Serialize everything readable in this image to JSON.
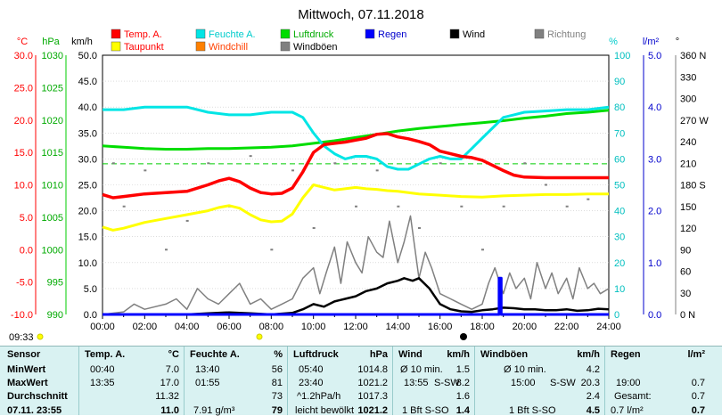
{
  "title": "Mittwoch, 07.11.2018",
  "legend": [
    {
      "label": "Temp. A.",
      "color": "#ff0000"
    },
    {
      "label": "Feuchte A.",
      "color": "#00e5e5"
    },
    {
      "label": "Luftdruck",
      "color": "#00dd00"
    },
    {
      "label": "Regen",
      "color": "#0000ff"
    },
    {
      "label": "Wind",
      "color": "#000000"
    },
    {
      "label": "Richtung",
      "color": "#808080"
    },
    {
      "label": "Taupunkt",
      "color": "#ffff00"
    },
    {
      "label": "Windchill",
      "color": "#ff8000"
    },
    {
      "label": "Windböen",
      "color": "#808080"
    }
  ],
  "axis_units": {
    "temp": "°C",
    "press": "hPa",
    "wind": "km/h",
    "hum": "%",
    "rain": "l/m²",
    "dir": "°"
  },
  "time_start": "09:33",
  "chart_data": {
    "type": "line",
    "x_unit": "hour",
    "x_ticks": [
      "00:00",
      "02:00",
      "04:00",
      "06:00",
      "08:00",
      "10:00",
      "12:00",
      "14:00",
      "16:00",
      "18:00",
      "20:00",
      "22:00",
      "24:00"
    ],
    "axes": {
      "temp": {
        "label": "°C",
        "min": -10,
        "max": 30,
        "ticks": [
          "30.0",
          "25.0",
          "20.0",
          "15.0",
          "10.0",
          "5.0",
          "0.0",
          "-5.0",
          "-10.0"
        ]
      },
      "press": {
        "label": "hPa",
        "min": 990,
        "max": 1030,
        "ticks": [
          "1030",
          "1025",
          "1020",
          "1015",
          "1010",
          "1005",
          "1000",
          "995",
          "990"
        ]
      },
      "wind": {
        "label": "km/h",
        "min": 0,
        "max": 50,
        "ticks": [
          "50.0",
          "45.0",
          "40.0",
          "35.0",
          "30.0",
          "25.0",
          "20.0",
          "15.0",
          "10.0",
          "5.0",
          "0.0"
        ]
      },
      "hum": {
        "label": "%",
        "min": 0,
        "max": 100,
        "ticks": [
          "100",
          "90",
          "80",
          "70",
          "60",
          "50",
          "40",
          "30",
          "20",
          "10",
          "0"
        ]
      },
      "rain": {
        "label": "l/m²",
        "min": 0,
        "max": 5,
        "ticks": [
          "5.0",
          "4.0",
          "3.0",
          "2.0",
          "1.0",
          "0.0"
        ]
      },
      "dir": {
        "label": "°",
        "min": 0,
        "max": 360,
        "ticks": [
          "360 N",
          "330",
          "300",
          "270 W",
          "240",
          "210",
          "180 S",
          "150",
          "120",
          "90",
          "60",
          "30",
          "0 N"
        ]
      }
    },
    "series": [
      {
        "name": "Temp. A.",
        "axis": "temp",
        "color": "#ff0000",
        "x": [
          0,
          0.5,
          1,
          2,
          3,
          4,
          5,
          5.5,
          6,
          6.5,
          7,
          7.5,
          8,
          8.5,
          9,
          9.5,
          10,
          10.5,
          11,
          11.5,
          12,
          12.5,
          13,
          13.5,
          14,
          14.5,
          15,
          15.5,
          16,
          16.5,
          17,
          17.5,
          18,
          18.5,
          19,
          19.5,
          20,
          21,
          22,
          23,
          24
        ],
        "y": [
          8.5,
          8,
          8.2,
          8.6,
          8.8,
          9,
          10,
          10.6,
          11,
          10.5,
          9.5,
          8.8,
          8.6,
          8.7,
          9.5,
          12,
          15,
          16.2,
          16.4,
          16.6,
          16.9,
          17.2,
          17.8,
          17.9,
          17.4,
          17.1,
          16.7,
          16.2,
          15.2,
          14.8,
          14.4,
          14.2,
          13.8,
          13,
          12.2,
          11.5,
          11.2,
          11.1,
          11.1,
          11.1,
          11.1
        ]
      },
      {
        "name": "Taupunkt",
        "axis": "temp",
        "color": "#ffff00",
        "x": [
          0,
          0.5,
          1,
          2,
          3,
          4,
          5,
          5.5,
          6,
          6.5,
          7,
          7.5,
          8,
          8.5,
          9,
          9.5,
          10,
          10.5,
          11,
          11.5,
          12,
          12.5,
          13,
          13.5,
          14,
          14.5,
          15,
          16,
          17,
          18,
          19,
          20,
          21,
          22,
          23,
          24
        ],
        "y": [
          3.5,
          3,
          3.3,
          4.2,
          4.8,
          5.4,
          6,
          6.5,
          6.8,
          6.4,
          5.4,
          4.6,
          4.3,
          4.4,
          5.5,
          8,
          10,
          9.6,
          9.2,
          9.4,
          9.6,
          9.4,
          9.3,
          9.1,
          9,
          8.8,
          8.6,
          8.4,
          8.2,
          8.1,
          8.3,
          8.4,
          8.5,
          8.5,
          8.6,
          8.6
        ]
      },
      {
        "name": "Feuchte A.",
        "axis": "hum",
        "color": "#00e5e5",
        "x": [
          0,
          1,
          2,
          3,
          4,
          5,
          6,
          7,
          8,
          9,
          9.5,
          10,
          10.5,
          11,
          11.5,
          12,
          12.5,
          13,
          13.5,
          14,
          14.5,
          15,
          15.5,
          16,
          16.5,
          17,
          17.5,
          18,
          18.5,
          19,
          19.5,
          20,
          21,
          22,
          23,
          24
        ],
        "y": [
          79,
          79,
          80,
          80,
          80,
          78,
          77,
          77,
          78,
          78,
          76,
          70,
          65,
          62,
          60,
          61,
          61,
          60,
          57,
          56,
          56,
          58,
          60,
          61,
          60,
          60,
          64,
          68,
          72,
          76,
          77,
          78,
          78.5,
          79,
          79,
          80
        ]
      },
      {
        "name": "Luftdruck",
        "axis": "press",
        "color": "#00dd00",
        "x": [
          0,
          1,
          2,
          3,
          4,
          5,
          6,
          7,
          8,
          9,
          10,
          11,
          12,
          13,
          14,
          15,
          16,
          17,
          18,
          19,
          20,
          21,
          22,
          23,
          24
        ],
        "y": [
          1016,
          1015.8,
          1015.6,
          1015.5,
          1015.5,
          1015.6,
          1015.6,
          1015.7,
          1015.8,
          1016,
          1016.4,
          1016.8,
          1017.3,
          1017.8,
          1018.3,
          1018.7,
          1019,
          1019.3,
          1019.6,
          1019.9,
          1020.3,
          1020.6,
          1021,
          1021.2,
          1021.5
        ]
      },
      {
        "name": "Wind",
        "axis": "wind",
        "color": "#000000",
        "x": [
          0,
          1,
          2,
          3,
          4,
          5,
          6,
          7,
          8,
          9,
          9.5,
          10,
          10.5,
          11,
          11.5,
          12,
          12.5,
          13,
          13.5,
          14,
          14.3,
          14.7,
          15,
          15.5,
          16,
          16.5,
          17,
          17.5,
          18,
          18.5,
          19,
          19.5,
          20,
          20.5,
          21,
          21.5,
          22,
          22.5,
          23,
          23.5,
          24
        ],
        "y": [
          0,
          0,
          0,
          0,
          0,
          0.2,
          0.4,
          0.2,
          0,
          0.3,
          1,
          2,
          1.5,
          2.5,
          3,
          3.5,
          4.5,
          5,
          6,
          6.5,
          7,
          6.5,
          7,
          5,
          2,
          1,
          0.6,
          0.5,
          0.8,
          1,
          1.3,
          1.2,
          1,
          1,
          0.8,
          0.8,
          1,
          0.7,
          0.8,
          1.1,
          1
        ]
      },
      {
        "name": "Windböen",
        "axis": "wind",
        "color": "#808080",
        "x": [
          0,
          1,
          1.5,
          2,
          3,
          3.5,
          4,
          4.5,
          5,
          5.5,
          6,
          6.5,
          7,
          7.5,
          8,
          8.5,
          9,
          9.5,
          10,
          10.3,
          10.6,
          11,
          11.3,
          11.6,
          12,
          12.3,
          12.6,
          13,
          13.3,
          13.6,
          14,
          14.3,
          14.6,
          15,
          15.3,
          15.6,
          16,
          16.5,
          17,
          17.5,
          18,
          18.3,
          18.6,
          19,
          19.3,
          19.6,
          20,
          20.3,
          20.6,
          21,
          21.3,
          21.6,
          22,
          22.3,
          22.6,
          23,
          23.3,
          23.6,
          24
        ],
        "y": [
          0,
          0.5,
          2,
          1,
          2,
          3,
          1,
          5,
          3,
          2,
          4,
          6,
          2,
          3,
          1,
          2,
          3,
          7,
          9,
          4,
          8,
          13,
          6,
          14,
          10,
          8,
          15,
          12,
          11,
          18,
          10,
          14,
          19,
          7,
          12,
          9,
          4,
          3,
          2,
          1,
          2,
          6,
          9,
          4,
          8,
          5,
          7,
          3,
          10,
          5,
          8,
          4,
          7,
          3,
          9,
          5,
          6,
          4,
          5
        ]
      },
      {
        "name": "Richtung",
        "axis": "dir",
        "color": "#808080",
        "x": [
          0.5,
          1,
          2,
          3,
          4,
          5,
          6,
          7,
          8,
          9,
          10,
          11,
          12,
          13,
          14,
          15,
          16,
          17,
          18,
          19,
          20,
          21,
          22,
          23
        ],
        "y": [
          210,
          150,
          200,
          90,
          130,
          210,
          150,
          220,
          90,
          200,
          120,
          210,
          150,
          200,
          150,
          120,
          210,
          150,
          90,
          150,
          210,
          180,
          150,
          160
        ]
      },
      {
        "name": "Regen",
        "axis": "rain",
        "color": "#0000ff",
        "x": [
          0,
          18.8,
          18.8,
          18.9,
          18.9,
          24
        ],
        "y": [
          0,
          0,
          0.7,
          0.7,
          0,
          0
        ]
      }
    ]
  },
  "stats": {
    "sensor": {
      "header": "Sensor",
      "rows": [
        "MinWert",
        "MaxWert",
        "Durchschnitt",
        "07.11. 23:55"
      ]
    },
    "temp": {
      "header": "Temp. A.",
      "unit": "°C",
      "rows": [
        [
          "00:40",
          "7.0"
        ],
        [
          "13:35",
          "17.0"
        ],
        [
          "",
          "11.32"
        ],
        [
          "",
          "11.0"
        ]
      ]
    },
    "hum": {
      "header": "Feuchte A.",
      "unit": "%",
      "rows": [
        [
          "13:40",
          "56"
        ],
        [
          "01:55",
          "81"
        ],
        [
          "",
          "73"
        ],
        [
          "7.91 g/m³",
          "79"
        ]
      ]
    },
    "press": {
      "header": "Luftdruck",
      "unit": "hPa",
      "rows": [
        [
          "05:40",
          "1014.8"
        ],
        [
          "23:40",
          "1021.2"
        ],
        [
          "^1.2hPa/h",
          "1017.3"
        ],
        [
          "leicht bewölkt",
          "1021.2"
        ]
      ]
    },
    "wind": {
      "header": "Wind",
      "unit": "km/h",
      "rows": [
        [
          "Ø 10 min.",
          "",
          "1.5"
        ],
        [
          "13:55",
          "S-SW",
          "8.2"
        ],
        [
          "",
          "",
          "1.6"
        ],
        [
          "1 Bft S-SO",
          "",
          "1.4"
        ]
      ]
    },
    "gust": {
      "header": "Windböen",
      "unit": "km/h",
      "rows": [
        [
          "Ø 10 min.",
          "",
          "4.2"
        ],
        [
          "15:00",
          "S-SW",
          "20.3"
        ],
        [
          "",
          "",
          "2.4"
        ],
        [
          "1 Bft S-SO",
          "",
          "4.5"
        ]
      ]
    },
    "rain": {
      "header": "Regen",
      "unit": "l/m²",
      "rows": [
        [
          "",
          ""
        ],
        [
          "19:00",
          "0.7"
        ],
        [
          "Gesamt:",
          "0.7"
        ],
        [
          "0.7 l/m²",
          "0.7"
        ]
      ]
    }
  }
}
